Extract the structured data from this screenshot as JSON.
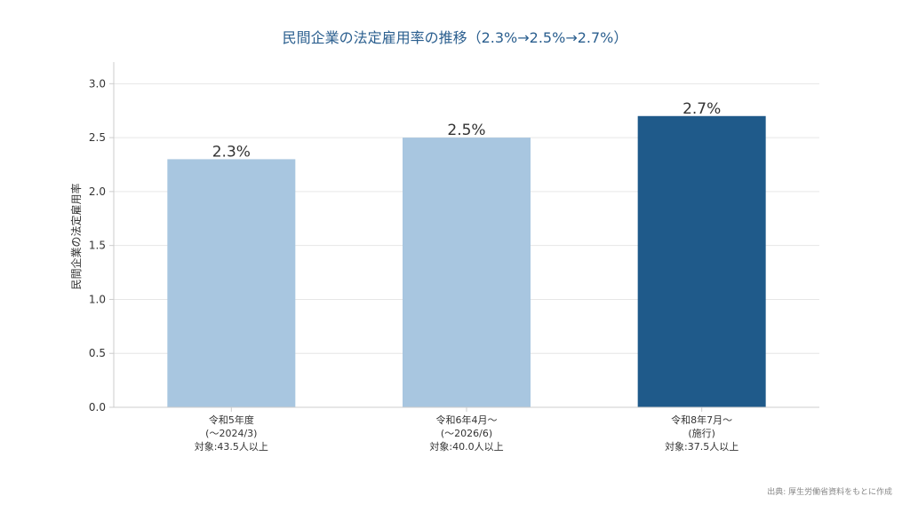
{
  "chart_data": {
    "type": "bar",
    "title": "民間企業の法定雇用率の推移（2.3%→2.5%→2.7%）",
    "xlabel": "",
    "ylabel": "民間企業の法定雇用率",
    "categories": [
      [
        "令和5年度",
        "(～2024/3)",
        "対象:43.5人以上"
      ],
      [
        "令和6年4月～",
        "(～2026/6)",
        "対象:40.0人以上"
      ],
      [
        "令和8年7月～",
        "(施行)",
        "対象:37.5人以上"
      ]
    ],
    "values": [
      2.3,
      2.5,
      2.7
    ],
    "data_labels": [
      "2.3%",
      "2.5%",
      "2.7%"
    ],
    "bar_colors": [
      "#a8c6e0",
      "#a8c6e0",
      "#1f5a8a"
    ],
    "ylim": [
      0,
      3.2
    ],
    "yticks": [
      0.0,
      0.5,
      1.0,
      1.5,
      2.0,
      2.5,
      3.0
    ],
    "ytick_labels": [
      "0.0",
      "0.5",
      "1.0",
      "1.5",
      "2.0",
      "2.5",
      "3.0"
    ],
    "grid": true,
    "source_note": "出典: 厚生労働省資料をもとに作成"
  },
  "colors": {
    "title": "#2b5f8f",
    "axis_text": "#333333",
    "data_label": "#333333",
    "grid": "#e6e6e6",
    "axis_line": "#cccccc",
    "source_note": "#888888"
  }
}
